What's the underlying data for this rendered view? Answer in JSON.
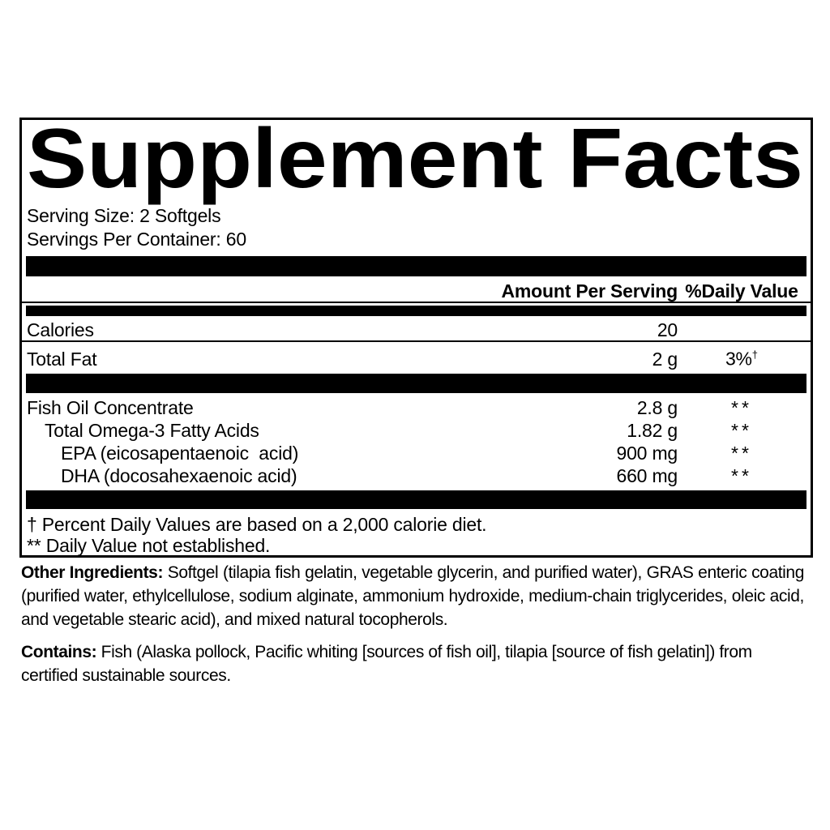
{
  "label": {
    "title": "Supplement Facts",
    "serving_size": "Serving Size: 2 Softgels",
    "servings_per_container": "Servings Per Container: 60",
    "header": {
      "amount": "Amount Per Serving",
      "daily_value": "%Daily Value"
    },
    "rows": [
      {
        "name": "Calories",
        "amount": "20",
        "dv": ""
      },
      {
        "name": "Total Fat",
        "amount": "2 g",
        "dv": "3%",
        "dv_sup": "†"
      },
      {
        "name": "Fish Oil Concentrate",
        "amount": "2.8 g",
        "dv": "**"
      },
      {
        "name": "Total Omega-3 Fatty Acids",
        "amount": "1.82 g",
        "dv": "**"
      },
      {
        "name": "EPA (eicosapentaenoic  acid)",
        "amount": "900 mg",
        "dv": "**"
      },
      {
        "name": "DHA (docosahexaenoic acid)",
        "amount": "660 mg",
        "dv": "**"
      }
    ],
    "footnotes": [
      "† Percent Daily Values are based on a 2,000 calorie diet.",
      "** Daily Value not established."
    ]
  },
  "other_ingredients": {
    "label": "Other Ingredients:",
    "text": "Softgel (tilapia fish gelatin, vegetable glycerin, and purified water), GRAS enteric coating (purified water, ethylcellulose, sodium alginate, ammonium hydroxide, medium-chain triglycerides, oleic acid, and vegetable stearic acid), and mixed natural tocopherols."
  },
  "contains": {
    "label": "Contains:",
    "text": "Fish (Alaska pollock, Pacific whiting [sources of fish oil], tilapia [source of fish gelatin]) from certified sustainable sources."
  },
  "colors": {
    "text": "#000000",
    "background": "#ffffff",
    "bars": "#000000"
  }
}
